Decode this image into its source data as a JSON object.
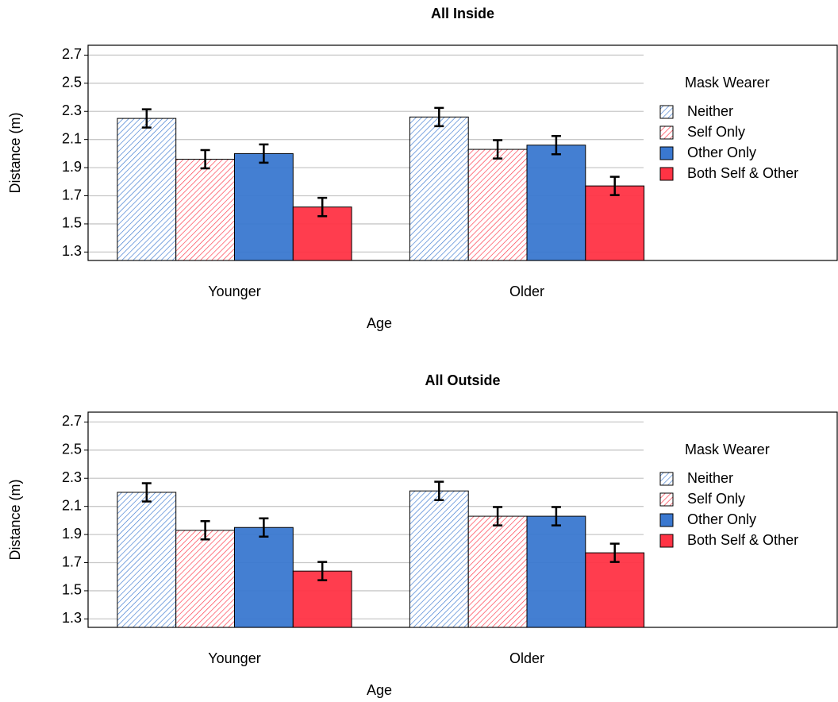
{
  "chart_data": [
    {
      "type": "bar",
      "title": "All Inside",
      "x_label": "Age",
      "y_label": "Distance (m)",
      "categories": [
        "Younger",
        "Older"
      ],
      "legend_title": "Mask Wearer",
      "legend": "right",
      "ylim": [
        1.24,
        2.77
      ],
      "yticks": [
        1.3,
        1.5,
        1.7,
        1.9,
        2.1,
        2.3,
        2.5,
        2.7
      ],
      "grid": true,
      "series": [
        {
          "name": "Neither",
          "color": "#3a78d0",
          "pattern": "hatch",
          "values": [
            2.25,
            2.26
          ],
          "errors": [
            0.065,
            0.065
          ]
        },
        {
          "name": "Self Only",
          "color": "#ff3344",
          "pattern": "hatch",
          "values": [
            1.96,
            2.03
          ],
          "errors": [
            0.065,
            0.065
          ]
        },
        {
          "name": "Other Only",
          "color": "#3a78d0",
          "pattern": "solid",
          "values": [
            2.0,
            2.06
          ],
          "errors": [
            0.065,
            0.065
          ]
        },
        {
          "name": "Both Self & Other",
          "color": "#ff3344",
          "pattern": "solid",
          "values": [
            1.62,
            1.77
          ],
          "errors": [
            0.065,
            0.065
          ]
        }
      ]
    },
    {
      "type": "bar",
      "title": "All Outside",
      "x_label": "Age",
      "y_label": "Distance (m)",
      "categories": [
        "Younger",
        "Older"
      ],
      "legend_title": "Mask Wearer",
      "legend": "right",
      "ylim": [
        1.24,
        2.77
      ],
      "yticks": [
        1.3,
        1.5,
        1.7,
        1.9,
        2.1,
        2.3,
        2.5,
        2.7
      ],
      "grid": true,
      "series": [
        {
          "name": "Neither",
          "color": "#3a78d0",
          "pattern": "hatch",
          "values": [
            2.2,
            2.21
          ],
          "errors": [
            0.065,
            0.065
          ]
        },
        {
          "name": "Self Only",
          "color": "#ff3344",
          "pattern": "hatch",
          "values": [
            1.93,
            2.03
          ],
          "errors": [
            0.065,
            0.065
          ]
        },
        {
          "name": "Other Only",
          "color": "#3a78d0",
          "pattern": "solid",
          "values": [
            1.95,
            2.03
          ],
          "errors": [
            0.065,
            0.065
          ]
        },
        {
          "name": "Both Self & Other",
          "color": "#ff3344",
          "pattern": "solid",
          "values": [
            1.64,
            1.77
          ],
          "errors": [
            0.065,
            0.065
          ]
        }
      ]
    }
  ]
}
